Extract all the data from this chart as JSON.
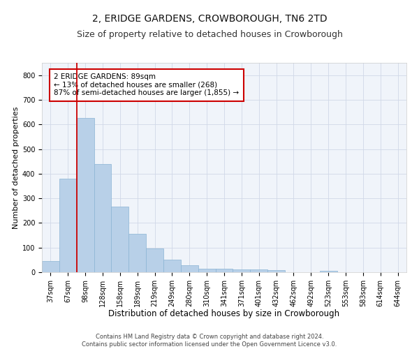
{
  "title": "2, ERIDGE GARDENS, CROWBOROUGH, TN6 2TD",
  "subtitle": "Size of property relative to detached houses in Crowborough",
  "xlabel": "Distribution of detached houses by size in Crowborough",
  "ylabel": "Number of detached properties",
  "categories": [
    "37sqm",
    "67sqm",
    "98sqm",
    "128sqm",
    "158sqm",
    "189sqm",
    "219sqm",
    "249sqm",
    "280sqm",
    "310sqm",
    "341sqm",
    "371sqm",
    "401sqm",
    "432sqm",
    "462sqm",
    "492sqm",
    "523sqm",
    "553sqm",
    "583sqm",
    "614sqm",
    "644sqm"
  ],
  "values": [
    44,
    381,
    625,
    438,
    267,
    155,
    95,
    52,
    28,
    15,
    15,
    11,
    11,
    8,
    0,
    0,
    7,
    0,
    0,
    0,
    0
  ],
  "bar_color": "#b8d0e8",
  "bar_edge_color": "#8ab4d4",
  "grid_color": "#d0d8e8",
  "vline_color": "#cc0000",
  "vline_x": 1.5,
  "annotation_text": "2 ERIDGE GARDENS: 89sqm\n← 13% of detached houses are smaller (268)\n87% of semi-detached houses are larger (1,855) →",
  "annotation_box_color": "#ffffff",
  "annotation_box_edge": "#cc0000",
  "ylim": [
    0,
    850
  ],
  "yticks": [
    0,
    100,
    200,
    300,
    400,
    500,
    600,
    700,
    800
  ],
  "footer": "Contains HM Land Registry data © Crown copyright and database right 2024.\nContains public sector information licensed under the Open Government Licence v3.0.",
  "title_fontsize": 10,
  "subtitle_fontsize": 9,
  "xlabel_fontsize": 8.5,
  "ylabel_fontsize": 8,
  "tick_fontsize": 7,
  "footer_fontsize": 6,
  "annotation_fontsize": 7.5,
  "bg_color": "#f0f4fa"
}
